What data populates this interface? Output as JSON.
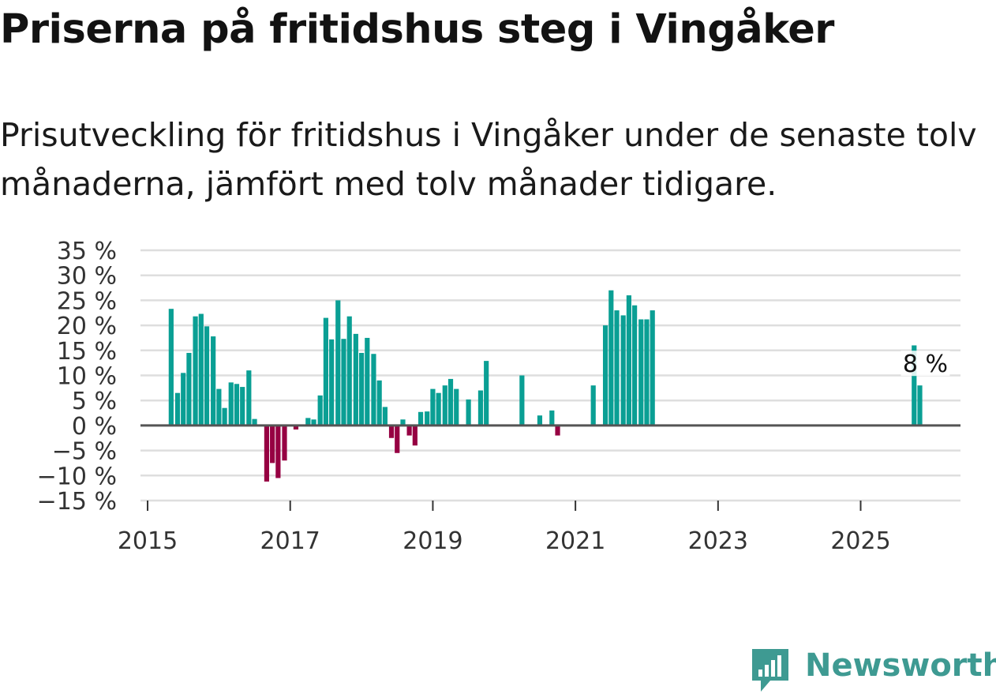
{
  "title": "Priserna på fritidshus steg i Vingåker",
  "subtitle": "Prisutveckling för fritidshus i Vingåker under de senaste tolv månaderna, jämfört med tolv månader tidigare.",
  "brand": {
    "name": "Newsworthy",
    "logo_icon": "bar-chart-logo-icon"
  },
  "colors": {
    "positive": "#0a9f94",
    "negative": "#960042",
    "grid": "#dedede",
    "zero_line": "#555555",
    "brand": "#3e9a92"
  },
  "chart_data": {
    "type": "bar",
    "title": "Priserna på fritidshus steg i Vingåker",
    "xlabel": "",
    "ylabel": "",
    "unit": "%",
    "ylim": [
      -15,
      35
    ],
    "yticks": [
      35,
      30,
      25,
      20,
      15,
      10,
      5,
      0,
      -5,
      -10,
      -15
    ],
    "ytick_labels": [
      "35 %",
      "30 %",
      "25 %",
      "20 %",
      "15 %",
      "10 %",
      "5 %",
      "0 %",
      "−5 %",
      "−10 %",
      "−15 %"
    ],
    "xlim": [
      2014.9,
      2026.4
    ],
    "xticks": [
      2015,
      2017,
      2019,
      2021,
      2023,
      2025
    ],
    "xtick_labels": [
      "2015",
      "2017",
      "2019",
      "2021",
      "2023",
      "2025"
    ],
    "annotation": {
      "label": "8 %",
      "x": 2025.83,
      "value": 8
    },
    "series": [
      {
        "name": "Prisutveckling",
        "points": [
          {
            "x": 2015.33,
            "value": 23.3
          },
          {
            "x": 2015.42,
            "value": 6.5
          },
          {
            "x": 2015.5,
            "value": 10.5
          },
          {
            "x": 2015.58,
            "value": 14.5
          },
          {
            "x": 2015.67,
            "value": 21.8
          },
          {
            "x": 2015.75,
            "value": 22.3
          },
          {
            "x": 2015.83,
            "value": 19.8
          },
          {
            "x": 2015.92,
            "value": 17.8
          },
          {
            "x": 2016.0,
            "value": 7.3
          },
          {
            "x": 2016.08,
            "value": 3.5
          },
          {
            "x": 2016.17,
            "value": 8.6
          },
          {
            "x": 2016.25,
            "value": 8.3
          },
          {
            "x": 2016.33,
            "value": 7.7
          },
          {
            "x": 2016.42,
            "value": 11.0
          },
          {
            "x": 2016.5,
            "value": 1.3
          },
          {
            "x": 2016.67,
            "value": -11.2
          },
          {
            "x": 2016.75,
            "value": -7.5
          },
          {
            "x": 2016.83,
            "value": -10.5
          },
          {
            "x": 2016.92,
            "value": -7.0
          },
          {
            "x": 2017.08,
            "value": -0.8
          },
          {
            "x": 2017.25,
            "value": 1.5
          },
          {
            "x": 2017.33,
            "value": 1.2
          },
          {
            "x": 2017.42,
            "value": 6.0
          },
          {
            "x": 2017.5,
            "value": 21.5
          },
          {
            "x": 2017.58,
            "value": 17.2
          },
          {
            "x": 2017.67,
            "value": 25.0
          },
          {
            "x": 2017.75,
            "value": 17.3
          },
          {
            "x": 2017.83,
            "value": 21.8
          },
          {
            "x": 2017.92,
            "value": 18.3
          },
          {
            "x": 2018.0,
            "value": 14.5
          },
          {
            "x": 2018.08,
            "value": 17.5
          },
          {
            "x": 2018.17,
            "value": 14.3
          },
          {
            "x": 2018.25,
            "value": 9.0
          },
          {
            "x": 2018.33,
            "value": 3.7
          },
          {
            "x": 2018.42,
            "value": -2.5
          },
          {
            "x": 2018.5,
            "value": -5.5
          },
          {
            "x": 2018.58,
            "value": 1.2
          },
          {
            "x": 2018.67,
            "value": -2.0
          },
          {
            "x": 2018.75,
            "value": -4.0
          },
          {
            "x": 2018.83,
            "value": 2.7
          },
          {
            "x": 2018.92,
            "value": 2.8
          },
          {
            "x": 2019.0,
            "value": 7.3
          },
          {
            "x": 2019.08,
            "value": 6.5
          },
          {
            "x": 2019.17,
            "value": 8.0
          },
          {
            "x": 2019.25,
            "value": 9.3
          },
          {
            "x": 2019.33,
            "value": 7.3
          },
          {
            "x": 2019.5,
            "value": 5.2
          },
          {
            "x": 2019.67,
            "value": 7.0
          },
          {
            "x": 2019.75,
            "value": 12.9
          },
          {
            "x": 2020.25,
            "value": 10.0
          },
          {
            "x": 2020.5,
            "value": 2.0
          },
          {
            "x": 2020.67,
            "value": 3.0
          },
          {
            "x": 2020.75,
            "value": -2.0
          },
          {
            "x": 2021.25,
            "value": 8.0
          },
          {
            "x": 2021.42,
            "value": 20.0
          },
          {
            "x": 2021.5,
            "value": 27.0
          },
          {
            "x": 2021.58,
            "value": 23.0
          },
          {
            "x": 2021.67,
            "value": 22.0
          },
          {
            "x": 2021.75,
            "value": 26.0
          },
          {
            "x": 2021.83,
            "value": 24.0
          },
          {
            "x": 2021.92,
            "value": 21.2
          },
          {
            "x": 2022.0,
            "value": 21.2
          },
          {
            "x": 2022.08,
            "value": 23.0
          },
          {
            "x": 2025.75,
            "value": 16.0
          },
          {
            "x": 2025.83,
            "value": 8.0
          }
        ]
      }
    ]
  }
}
